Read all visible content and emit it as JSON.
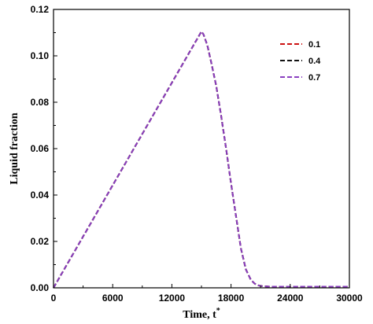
{
  "chart_data": {
    "type": "line",
    "title": "",
    "xlabel": "Time, t",
    "xlabel_superscript": "*",
    "ylabel": "Liquid fraction",
    "xlim": [
      0,
      30000
    ],
    "ylim": [
      0,
      0.12
    ],
    "x_ticks": [
      0,
      6000,
      12000,
      18000,
      24000,
      30000
    ],
    "x_tick_labels": [
      "0",
      "6000",
      "12000",
      "18000",
      "24000",
      "30000"
    ],
    "y_ticks": [
      0,
      0.02,
      0.04,
      0.06,
      0.08,
      0.1,
      0.12
    ],
    "y_tick_labels": [
      "0.00",
      "0.02",
      "0.04",
      "0.06",
      "0.08",
      "0.10",
      "0.12"
    ],
    "grid": false,
    "legend_position": "top-right",
    "series": [
      {
        "name": "0.1",
        "color": "#cc1111",
        "dash": "dashed",
        "x": [
          0,
          3000,
          6000,
          9000,
          12000,
          15000,
          15200,
          15600,
          16000,
          16500,
          17000,
          17500,
          18000,
          18500,
          19000,
          19500,
          20000,
          20400,
          20800,
          21200,
          22000,
          24000,
          27000,
          30000
        ],
        "y": [
          0.0,
          0.0221,
          0.0442,
          0.0663,
          0.0884,
          0.1105,
          0.1093,
          0.1045,
          0.097,
          0.087,
          0.074,
          0.06,
          0.045,
          0.031,
          0.017,
          0.008,
          0.0035,
          0.0018,
          0.001,
          0.0007,
          0.0005,
          0.0005,
          0.0005,
          0.0005
        ]
      },
      {
        "name": "0.4",
        "color": "#111111",
        "dash": "dashed",
        "x": [
          0,
          3000,
          6000,
          9000,
          12000,
          15000,
          15200,
          15600,
          16000,
          16500,
          17000,
          17500,
          18000,
          18500,
          19000,
          19500,
          20000,
          20400,
          20800,
          21200,
          22000,
          24000,
          27000,
          30000
        ],
        "y": [
          0.0,
          0.0221,
          0.0442,
          0.0663,
          0.0884,
          0.1105,
          0.1093,
          0.1045,
          0.097,
          0.087,
          0.074,
          0.06,
          0.045,
          0.031,
          0.017,
          0.008,
          0.0035,
          0.0018,
          0.001,
          0.0007,
          0.0005,
          0.0005,
          0.0005,
          0.0005
        ]
      },
      {
        "name": "0.7",
        "color": "#8a3fc0",
        "dash": "dashed",
        "x": [
          0,
          3000,
          6000,
          9000,
          12000,
          15000,
          15200,
          15600,
          16000,
          16500,
          17000,
          17500,
          18000,
          18500,
          19000,
          19500,
          20000,
          20400,
          20800,
          21200,
          22000,
          24000,
          27000,
          30000
        ],
        "y": [
          0.0,
          0.0221,
          0.0442,
          0.0663,
          0.0884,
          0.1105,
          0.1093,
          0.1045,
          0.097,
          0.087,
          0.074,
          0.06,
          0.045,
          0.031,
          0.017,
          0.008,
          0.0035,
          0.0018,
          0.001,
          0.0007,
          0.0005,
          0.0005,
          0.0005,
          0.0005
        ]
      }
    ]
  }
}
